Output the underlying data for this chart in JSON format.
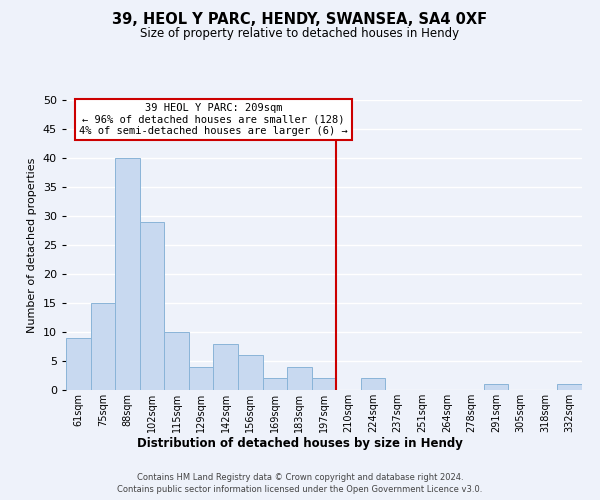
{
  "title": "39, HEOL Y PARC, HENDY, SWANSEA, SA4 0XF",
  "subtitle": "Size of property relative to detached houses in Hendy",
  "xlabel": "Distribution of detached houses by size in Hendy",
  "ylabel": "Number of detached properties",
  "bin_labels": [
    "61sqm",
    "75sqm",
    "88sqm",
    "102sqm",
    "115sqm",
    "129sqm",
    "142sqm",
    "156sqm",
    "169sqm",
    "183sqm",
    "197sqm",
    "210sqm",
    "224sqm",
    "237sqm",
    "251sqm",
    "264sqm",
    "278sqm",
    "291sqm",
    "305sqm",
    "318sqm",
    "332sqm"
  ],
  "bar_values": [
    9,
    15,
    40,
    29,
    10,
    4,
    8,
    6,
    2,
    4,
    2,
    0,
    2,
    0,
    0,
    0,
    0,
    1,
    0,
    0,
    1
  ],
  "bar_color": "#c8d9f0",
  "bar_edge_color": "#8ab4d8",
  "vline_x": 10.5,
  "vline_color": "#cc0000",
  "ylim": [
    0,
    50
  ],
  "yticks": [
    0,
    5,
    10,
    15,
    20,
    25,
    30,
    35,
    40,
    45,
    50
  ],
  "annotation_title": "39 HEOL Y PARC: 209sqm",
  "annotation_line1": "← 96% of detached houses are smaller (128)",
  "annotation_line2": "4% of semi-detached houses are larger (6) →",
  "annotation_box_color": "#ffffff",
  "annotation_box_edge": "#cc0000",
  "footer_line1": "Contains HM Land Registry data © Crown copyright and database right 2024.",
  "footer_line2": "Contains public sector information licensed under the Open Government Licence v3.0.",
  "background_color": "#eef2fa",
  "grid_color": "#ffffff"
}
